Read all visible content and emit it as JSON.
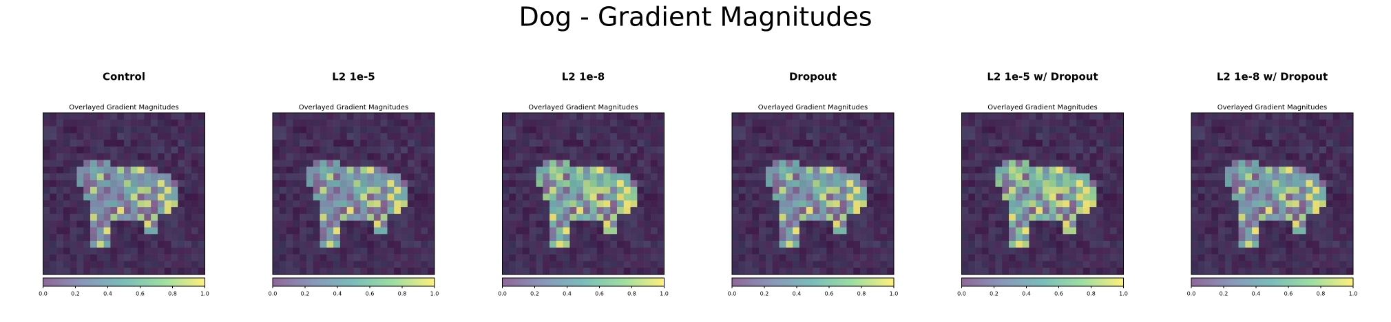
{
  "title": "Dog - Gradient Magnitudes",
  "chart_data": [
    {
      "type": "image",
      "title": "Control",
      "subtitle": "Overlayed Gradient Magnitudes",
      "clim": [
        0,
        1
      ],
      "cticks": [
        {
          "value": 0,
          "label": "0.0"
        },
        0.2,
        0.4,
        0.6,
        0.8,
        {
          "value": 1,
          "label": "1.0"
        }
      ]
    },
    {
      "type": "image",
      "title": "L2 1e-5",
      "subtitle": "Overlayed Gradient Magnitudes",
      "clim": [
        0,
        1
      ],
      "cticks": [
        {
          "value": 0,
          "label": "0.0"
        },
        0.2,
        0.4,
        0.6,
        0.8,
        {
          "value": 1,
          "label": "1.0"
        }
      ]
    },
    {
      "type": "image",
      "title": "L2 1e-8",
      "subtitle": "Overlayed Gradient Magnitudes",
      "clim": [
        0,
        1
      ],
      "cticks": [
        {
          "value": 0,
          "label": "0.0"
        },
        0.2,
        0.4,
        0.6,
        0.8,
        {
          "value": 1,
          "label": "1.0"
        }
      ]
    },
    {
      "type": "image",
      "title": "Dropout",
      "subtitle": "Overlayed Gradient Magnitudes",
      "clim": [
        0,
        1
      ],
      "cticks": [
        {
          "value": 0,
          "label": "0.0"
        },
        0.2,
        0.4,
        0.6,
        0.8,
        {
          "value": 1,
          "label": "1.0"
        }
      ]
    },
    {
      "type": "image",
      "title": "L2 1e-5 w/ Dropout",
      "subtitle": "Overlayed Gradient Magnitudes",
      "clim": [
        0,
        1
      ],
      "cticks": [
        {
          "value": 0,
          "label": "0.0"
        },
        0.2,
        0.4,
        0.6,
        0.8,
        {
          "value": 1,
          "label": "1.0"
        }
      ]
    },
    {
      "type": "image",
      "title": "L2 1e-8 w/ Dropout",
      "subtitle": "Overlayed Gradient Magnitudes",
      "clim": [
        0,
        1
      ],
      "cticks": [
        {
          "value": 0,
          "label": "0.0"
        },
        0.2,
        0.4,
        0.6,
        0.8,
        {
          "value": 1,
          "label": "1.0"
        }
      ]
    }
  ]
}
